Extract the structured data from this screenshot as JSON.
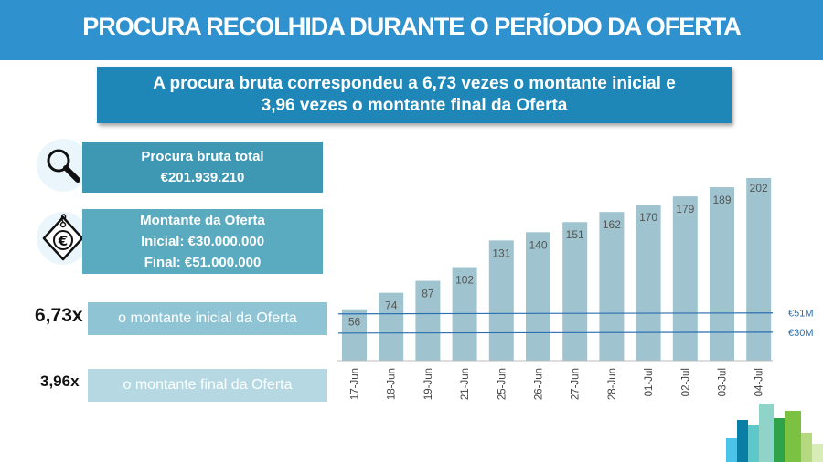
{
  "header": {
    "title": "PROCURA RECOLHIDA DURANTE O PERÍODO DA OFERTA"
  },
  "subtitle": {
    "line1": "A procura bruta correspondeu a 6,73 vezes o montante inicial e",
    "line2": "3,96 vezes o montante final da Oferta"
  },
  "procura": {
    "label": "Procura bruta total",
    "value": "€201.939.210",
    "icon": "magnifier-icon"
  },
  "montante": {
    "label": "Montante da Oferta",
    "inicial": "Inicial: €30.000.000",
    "final": "Final: €51.000.000",
    "icon": "euro-tag-icon"
  },
  "multiples": {
    "inicial": {
      "value": "6,73x",
      "label": "o montante inicial da Oferta"
    },
    "final": {
      "value": "3,96x",
      "label": "o montante final da Oferta"
    }
  },
  "colors": {
    "header": "#2f92cf",
    "bar": "#9fc4cf",
    "line": "#2a6fb0",
    "label": "#2a6fb0"
  },
  "chart_data": {
    "type": "bar",
    "categories": [
      "17-Jun",
      "18-Jun",
      "19-Jun",
      "21-Jun",
      "25-Jun",
      "26-Jun",
      "27-Jun",
      "28-Jun",
      "01-Jul",
      "02-Jul",
      "03-Jul",
      "04-Jul"
    ],
    "values": [
      56,
      74,
      87,
      102,
      131,
      140,
      151,
      162,
      170,
      179,
      189,
      202
    ],
    "reference_lines": [
      {
        "value": 51,
        "label": "€51M"
      },
      {
        "value": 30,
        "label": "€30M"
      }
    ],
    "ylim": [
      0,
      210
    ]
  }
}
